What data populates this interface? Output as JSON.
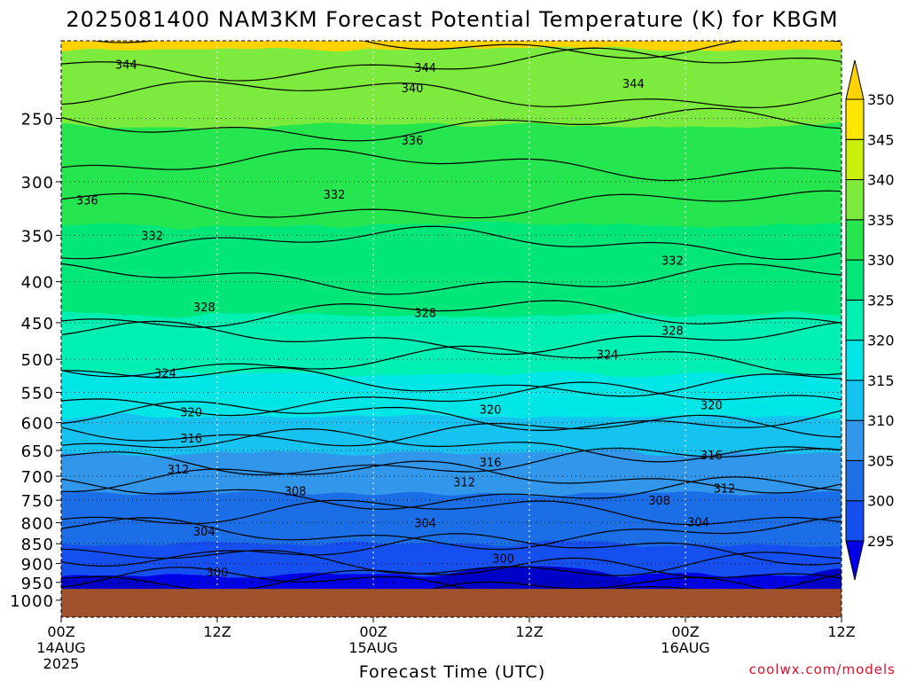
{
  "chart_data": {
    "type": "heatmap",
    "title": "2025081400 NAM3KM Forecast Potential Temperature (K) for KBGM",
    "xlabel": "Forecast Time (UTC)",
    "ylabel": "",
    "y_scale": "log-pressure",
    "ylim": [
      1050,
      200
    ],
    "y_ticks": [
      250,
      300,
      350,
      400,
      450,
      500,
      550,
      600,
      650,
      700,
      750,
      800,
      850,
      900,
      950,
      1000
    ],
    "x_ticks": [
      {
        "hour": 0,
        "label": "00Z",
        "sub1": "14AUG",
        "sub2": "2025"
      },
      {
        "hour": 12,
        "label": "12Z",
        "sub1": "",
        "sub2": ""
      },
      {
        "hour": 24,
        "label": "00Z",
        "sub1": "15AUG",
        "sub2": ""
      },
      {
        "hour": 36,
        "label": "12Z",
        "sub1": "",
        "sub2": ""
      },
      {
        "hour": 48,
        "label": "00Z",
        "sub1": "16AUG",
        "sub2": ""
      },
      {
        "hour": 60,
        "label": "12Z",
        "sub1": "",
        "sub2": ""
      }
    ],
    "xlim": [
      0,
      60
    ],
    "colorbar": {
      "levels": [
        295,
        300,
        305,
        310,
        315,
        320,
        325,
        330,
        335,
        340,
        345,
        350
      ],
      "colors": [
        "#0000e6",
        "#1450f0",
        "#1e6ee6",
        "#3296eb",
        "#14c3f0",
        "#00e6e6",
        "#00f0b4",
        "#00e678",
        "#28e650",
        "#7deb3c",
        "#c8f00a",
        "#ffe600"
      ],
      "under_color": "#0000c8",
      "over_color": "#ffd200"
    },
    "contour_interval": 2,
    "contour_labels": [
      {
        "value": "344",
        "hour": 5,
        "p": 214
      },
      {
        "value": "344",
        "hour": 28,
        "p": 216
      },
      {
        "value": "344",
        "hour": 44,
        "p": 226
      },
      {
        "value": "340",
        "hour": 27,
        "p": 229
      },
      {
        "value": "336",
        "hour": 27,
        "p": 266
      },
      {
        "value": "336",
        "hour": 2,
        "p": 316
      },
      {
        "value": "332",
        "hour": 21,
        "p": 311
      },
      {
        "value": "332",
        "hour": 7,
        "p": 350
      },
      {
        "value": "332",
        "hour": 47,
        "p": 376
      },
      {
        "value": "328",
        "hour": 11,
        "p": 430
      },
      {
        "value": "328",
        "hour": 28,
        "p": 437
      },
      {
        "value": "328",
        "hour": 47,
        "p": 460
      },
      {
        "value": "324",
        "hour": 8,
        "p": 520
      },
      {
        "value": "324",
        "hour": 42,
        "p": 493
      },
      {
        "value": "320",
        "hour": 10,
        "p": 582
      },
      {
        "value": "320",
        "hour": 33,
        "p": 577
      },
      {
        "value": "320",
        "hour": 50,
        "p": 570
      },
      {
        "value": "316",
        "hour": 10,
        "p": 627
      },
      {
        "value": "316",
        "hour": 33,
        "p": 672
      },
      {
        "value": "316",
        "hour": 50,
        "p": 658
      },
      {
        "value": "312",
        "hour": 9,
        "p": 686
      },
      {
        "value": "312",
        "hour": 31,
        "p": 712
      },
      {
        "value": "312",
        "hour": 51,
        "p": 724
      },
      {
        "value": "308",
        "hour": 18,
        "p": 730
      },
      {
        "value": "308",
        "hour": 46,
        "p": 750
      },
      {
        "value": "304",
        "hour": 11,
        "p": 820
      },
      {
        "value": "304",
        "hour": 28,
        "p": 800
      },
      {
        "value": "304",
        "hour": 49,
        "p": 798
      },
      {
        "value": "300",
        "hour": 12,
        "p": 922
      },
      {
        "value": "300",
        "hour": 34,
        "p": 886
      }
    ],
    "ground": {
      "p_top": 968,
      "color": "#a0522d"
    },
    "credit": "coolwx.com/models"
  }
}
